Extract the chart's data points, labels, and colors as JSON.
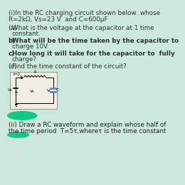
{
  "bg_color": "#cce8dc",
  "title_lines": [
    "(i)In the RC charging circuit shown below  whose",
    "R=2kΩ, Vs=23 V  and C=600µF"
  ],
  "questions": [
    {
      "label": "(a)",
      "text": "   What is the voltage at the capacitor at 1 time",
      "text2": "constant.",
      "bold": false
    },
    {
      "label": "b)",
      "text": "   What will be the time taken by the capacitor to",
      "text2": "charge 10V.",
      "bold": true
    },
    {
      "label": "c)",
      "text": "   How long it will take for the capacitor to  fully",
      "text2": "charge?",
      "bold": true
    },
    {
      "label": "(d)",
      "text": "   Find the time constant of the circuit?",
      "text2": "",
      "bold": false
    }
  ],
  "footer_lines": [
    "(ii) Draw a RC waveform and explain whose half of",
    "the time period  T=5τ,whereτ is the time constant"
  ],
  "circuit_bg": "#f0ede5",
  "highlight_color": "#00c87a",
  "font_size": 6.3
}
